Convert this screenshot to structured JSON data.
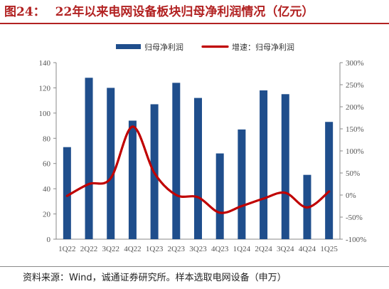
{
  "figure": {
    "label": "图24：",
    "title": "22年以来电网设备板块归母净利润情况（亿元）",
    "source": "资料来源：Wind，诚通证券研究所。样本选取电网设备（申万）"
  },
  "colors": {
    "title": "#b22222",
    "bar": "#1f4e8c",
    "line": "#c00000",
    "axis": "#8a8a8a"
  },
  "chart_data": {
    "type": "bar",
    "categories": [
      "1Q22",
      "2Q22",
      "3Q22",
      "4Q22",
      "1Q23",
      "2Q23",
      "3Q23",
      "4Q23",
      "1Q24",
      "2Q24",
      "3Q24",
      "4Q24",
      "1Q25"
    ],
    "series": [
      {
        "name": "归母净利润",
        "type": "bar",
        "axis": "left",
        "values": [
          73,
          128,
          120,
          94,
          107,
          124,
          112,
          68,
          87,
          118,
          115,
          51,
          93
        ]
      },
      {
        "name": "增速：归母净利润",
        "type": "line",
        "axis": "right",
        "values": [
          -2,
          25,
          38,
          155,
          50,
          0,
          -5,
          -40,
          -25,
          -8,
          5,
          -28,
          8
        ]
      }
    ],
    "y_left": {
      "min": 0,
      "max": 140,
      "ticks": [
        0,
        20,
        40,
        60,
        80,
        100,
        120,
        140
      ]
    },
    "y_right": {
      "min": -100,
      "max": 300,
      "ticks": [
        -100,
        -50,
        0,
        50,
        100,
        150,
        200,
        250,
        300
      ],
      "unit": "%"
    },
    "legend_position": "top",
    "grid": false
  }
}
